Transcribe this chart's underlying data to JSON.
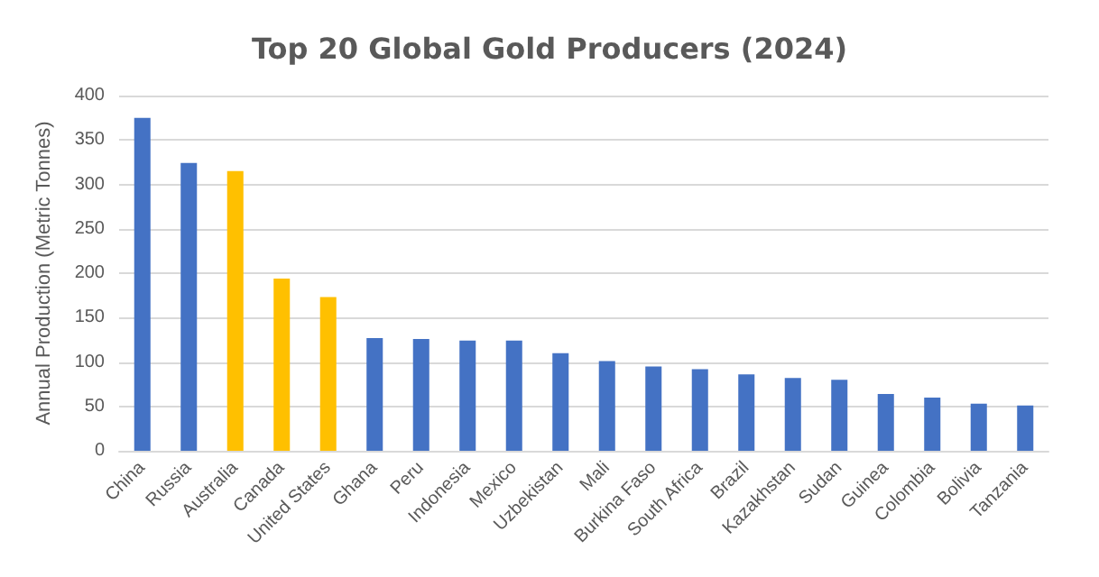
{
  "chart_data": {
    "type": "bar",
    "title": "Top 20 Global Gold Producers (2024)",
    "ylabel": "Annual Production (Metric Tonnes)",
    "categories": [
      "China",
      "Russia",
      "Australia",
      "Canada",
      "United States",
      "Ghana",
      "Peru",
      "Indonesia",
      "Mexico",
      "Uzbekistan",
      "Mali",
      "Burkina Faso",
      "South Africa",
      "Brazil",
      "Kazakhstan",
      "Sudan",
      "Guinea",
      "Colombia",
      "Bolivia",
      "Tanzania"
    ],
    "values": [
      375,
      324,
      315,
      194,
      173,
      127,
      126,
      124,
      124,
      110,
      101,
      95,
      92,
      86,
      82,
      80,
      64,
      60,
      53,
      51
    ],
    "colors": [
      "#4472c4",
      "#4472c4",
      "#ffc000",
      "#ffc000",
      "#ffc000",
      "#4472c4",
      "#4472c4",
      "#4472c4",
      "#4472c4",
      "#4472c4",
      "#4472c4",
      "#4472c4",
      "#4472c4",
      "#4472c4",
      "#4472c4",
      "#4472c4",
      "#4472c4",
      "#4472c4",
      "#4472c4",
      "#4472c4"
    ],
    "ylim": [
      0,
      400
    ],
    "yticks": [
      0,
      50,
      100,
      150,
      200,
      250,
      300,
      350,
      400
    ],
    "grid": "y"
  }
}
